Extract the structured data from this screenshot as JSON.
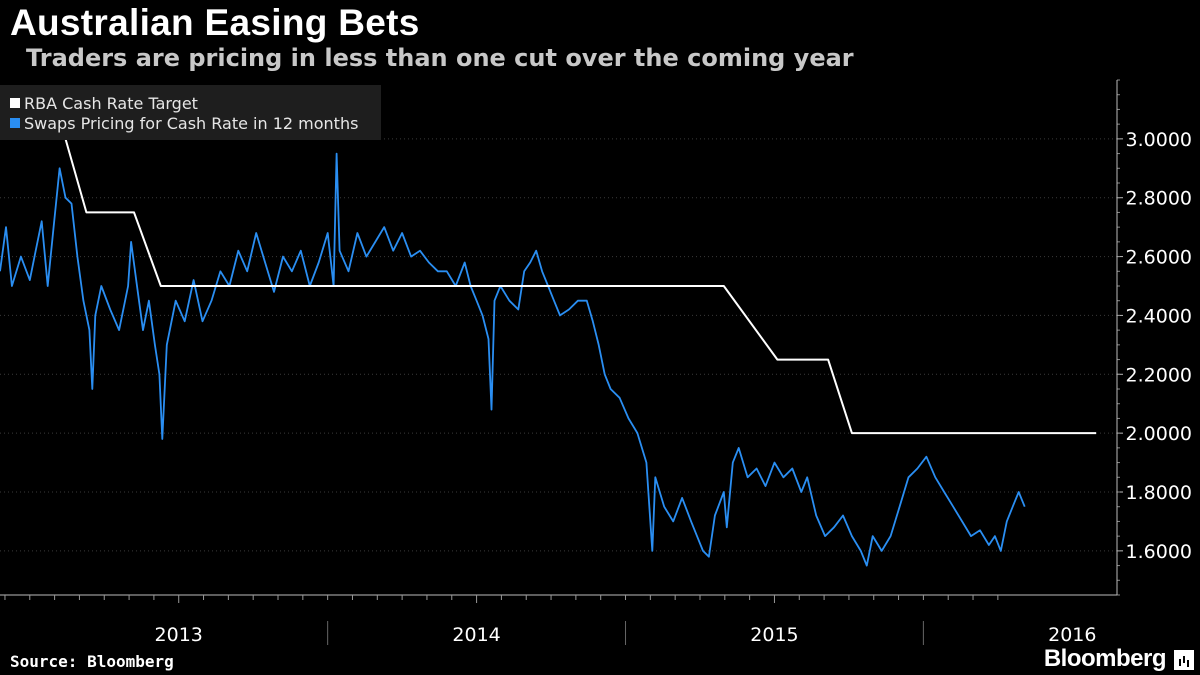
{
  "chart_data": {
    "type": "line",
    "title": "Australian Easing Bets",
    "subtitle": "Traders are pricing in less than one cut over the coming year",
    "source": "Source: Bloomberg",
    "brand": "Bloomberg",
    "x_domain": [
      2012.4,
      2016.15
    ],
    "ylim": [
      1.45,
      3.2
    ],
    "yticks": [
      {
        "value": 3.0,
        "label": "3.0000"
      },
      {
        "value": 2.8,
        "label": "2.8000"
      },
      {
        "value": 2.6,
        "label": "2.6000"
      },
      {
        "value": 2.4,
        "label": "2.4000"
      },
      {
        "value": 2.2,
        "label": "2.2000"
      },
      {
        "value": 2.0,
        "label": "2.0000"
      },
      {
        "value": 1.8,
        "label": "1.8000"
      },
      {
        "value": 1.6,
        "label": "1.6000"
      }
    ],
    "x_labels": [
      {
        "value": 2013.0,
        "label": "2013"
      },
      {
        "value": 2014.0,
        "label": "2014"
      },
      {
        "value": 2015.0,
        "label": "2015"
      },
      {
        "value": 2016.0,
        "label": "2016"
      }
    ],
    "x_separators": [
      2013.5,
      2014.5,
      2015.5
    ],
    "legend": [
      {
        "name": "RBA Cash Rate Target",
        "color": "#ffffff"
      },
      {
        "name": "Swaps Pricing for Cash Rate in 12 months",
        "color": "#2a8ef2"
      }
    ],
    "series": [
      {
        "name": "RBA Cash Rate Target",
        "color": "#ffffff",
        "points": [
          [
            2012.62,
            3.0
          ],
          [
            2012.69,
            2.75
          ],
          [
            2012.85,
            2.75
          ],
          [
            2012.94,
            2.5
          ],
          [
            2014.83,
            2.5
          ],
          [
            2015.01,
            2.25
          ],
          [
            2015.18,
            2.25
          ],
          [
            2015.26,
            2.0
          ],
          [
            2016.08,
            2.0
          ]
        ]
      },
      {
        "name": "Swaps Pricing for Cash Rate in 12 months",
        "color": "#2a8ef2",
        "points": [
          [
            2012.4,
            2.55
          ],
          [
            2012.42,
            2.7
          ],
          [
            2012.44,
            2.5
          ],
          [
            2012.47,
            2.6
          ],
          [
            2012.5,
            2.52
          ],
          [
            2012.52,
            2.62
          ],
          [
            2012.54,
            2.72
          ],
          [
            2012.56,
            2.5
          ],
          [
            2012.58,
            2.7
          ],
          [
            2012.6,
            2.9
          ],
          [
            2012.62,
            2.8
          ],
          [
            2012.64,
            2.78
          ],
          [
            2012.66,
            2.6
          ],
          [
            2012.68,
            2.45
          ],
          [
            2012.7,
            2.35
          ],
          [
            2012.71,
            2.15
          ],
          [
            2012.72,
            2.4
          ],
          [
            2012.74,
            2.5
          ],
          [
            2012.77,
            2.42
          ],
          [
            2012.8,
            2.35
          ],
          [
            2012.83,
            2.5
          ],
          [
            2012.84,
            2.65
          ],
          [
            2012.86,
            2.5
          ],
          [
            2012.88,
            2.35
          ],
          [
            2012.9,
            2.45
          ],
          [
            2012.92,
            2.3
          ],
          [
            2012.935,
            2.2
          ],
          [
            2012.945,
            1.98
          ],
          [
            2012.96,
            2.3
          ],
          [
            2012.99,
            2.45
          ],
          [
            2013.02,
            2.38
          ],
          [
            2013.05,
            2.52
          ],
          [
            2013.08,
            2.38
          ],
          [
            2013.11,
            2.45
          ],
          [
            2013.14,
            2.55
          ],
          [
            2013.17,
            2.5
          ],
          [
            2013.2,
            2.62
          ],
          [
            2013.23,
            2.55
          ],
          [
            2013.26,
            2.68
          ],
          [
            2013.29,
            2.58
          ],
          [
            2013.32,
            2.48
          ],
          [
            2013.35,
            2.6
          ],
          [
            2013.38,
            2.55
          ],
          [
            2013.41,
            2.62
          ],
          [
            2013.44,
            2.5
          ],
          [
            2013.47,
            2.58
          ],
          [
            2013.5,
            2.68
          ],
          [
            2013.52,
            2.5
          ],
          [
            2013.53,
            2.95
          ],
          [
            2013.54,
            2.62
          ],
          [
            2013.57,
            2.55
          ],
          [
            2013.6,
            2.68
          ],
          [
            2013.63,
            2.6
          ],
          [
            2013.66,
            2.65
          ],
          [
            2013.69,
            2.7
          ],
          [
            2013.72,
            2.62
          ],
          [
            2013.75,
            2.68
          ],
          [
            2013.78,
            2.6
          ],
          [
            2013.81,
            2.62
          ],
          [
            2013.84,
            2.58
          ],
          [
            2013.87,
            2.55
          ],
          [
            2013.9,
            2.55
          ],
          [
            2013.93,
            2.5
          ],
          [
            2013.96,
            2.58
          ],
          [
            2013.98,
            2.5
          ],
          [
            2014.0,
            2.45
          ],
          [
            2014.02,
            2.4
          ],
          [
            2014.04,
            2.32
          ],
          [
            2014.05,
            2.08
          ],
          [
            2014.06,
            2.45
          ],
          [
            2014.08,
            2.5
          ],
          [
            2014.11,
            2.45
          ],
          [
            2014.14,
            2.42
          ],
          [
            2014.16,
            2.55
          ],
          [
            2014.18,
            2.58
          ],
          [
            2014.2,
            2.62
          ],
          [
            2014.22,
            2.55
          ],
          [
            2014.24,
            2.5
          ],
          [
            2014.26,
            2.45
          ],
          [
            2014.28,
            2.4
          ],
          [
            2014.31,
            2.42
          ],
          [
            2014.34,
            2.45
          ],
          [
            2014.37,
            2.45
          ],
          [
            2014.39,
            2.38
          ],
          [
            2014.41,
            2.3
          ],
          [
            2014.43,
            2.2
          ],
          [
            2014.45,
            2.15
          ],
          [
            2014.48,
            2.12
          ],
          [
            2014.51,
            2.05
          ],
          [
            2014.54,
            2.0
          ],
          [
            2014.57,
            1.9
          ],
          [
            2014.59,
            1.6
          ],
          [
            2014.6,
            1.85
          ],
          [
            2014.63,
            1.75
          ],
          [
            2014.66,
            1.7
          ],
          [
            2014.69,
            1.78
          ],
          [
            2014.72,
            1.7
          ],
          [
            2014.74,
            1.65
          ],
          [
            2014.76,
            1.6
          ],
          [
            2014.78,
            1.58
          ],
          [
            2014.8,
            1.72
          ],
          [
            2014.83,
            1.8
          ],
          [
            2014.84,
            1.68
          ],
          [
            2014.86,
            1.9
          ],
          [
            2014.88,
            1.95
          ],
          [
            2014.91,
            1.85
          ],
          [
            2014.94,
            1.88
          ],
          [
            2014.97,
            1.82
          ],
          [
            2015.0,
            1.9
          ],
          [
            2015.03,
            1.85
          ],
          [
            2015.06,
            1.88
          ],
          [
            2015.09,
            1.8
          ],
          [
            2015.11,
            1.85
          ],
          [
            2015.14,
            1.72
          ],
          [
            2015.17,
            1.65
          ],
          [
            2015.2,
            1.68
          ],
          [
            2015.23,
            1.72
          ],
          [
            2015.26,
            1.65
          ],
          [
            2015.29,
            1.6
          ],
          [
            2015.31,
            1.55
          ],
          [
            2015.33,
            1.65
          ],
          [
            2015.36,
            1.6
          ],
          [
            2015.39,
            1.65
          ],
          [
            2015.42,
            1.75
          ],
          [
            2015.45,
            1.85
          ],
          [
            2015.48,
            1.88
          ],
          [
            2015.51,
            1.92
          ],
          [
            2015.54,
            1.85
          ],
          [
            2015.57,
            1.8
          ],
          [
            2015.6,
            1.75
          ],
          [
            2015.63,
            1.7
          ],
          [
            2015.66,
            1.65
          ],
          [
            2015.69,
            1.67
          ],
          [
            2015.72,
            1.62
          ],
          [
            2015.74,
            1.65
          ],
          [
            2015.76,
            1.6
          ],
          [
            2015.78,
            1.7
          ],
          [
            2015.8,
            1.75
          ],
          [
            2015.82,
            1.8
          ],
          [
            2015.84,
            1.75
          ]
        ]
      }
    ]
  }
}
